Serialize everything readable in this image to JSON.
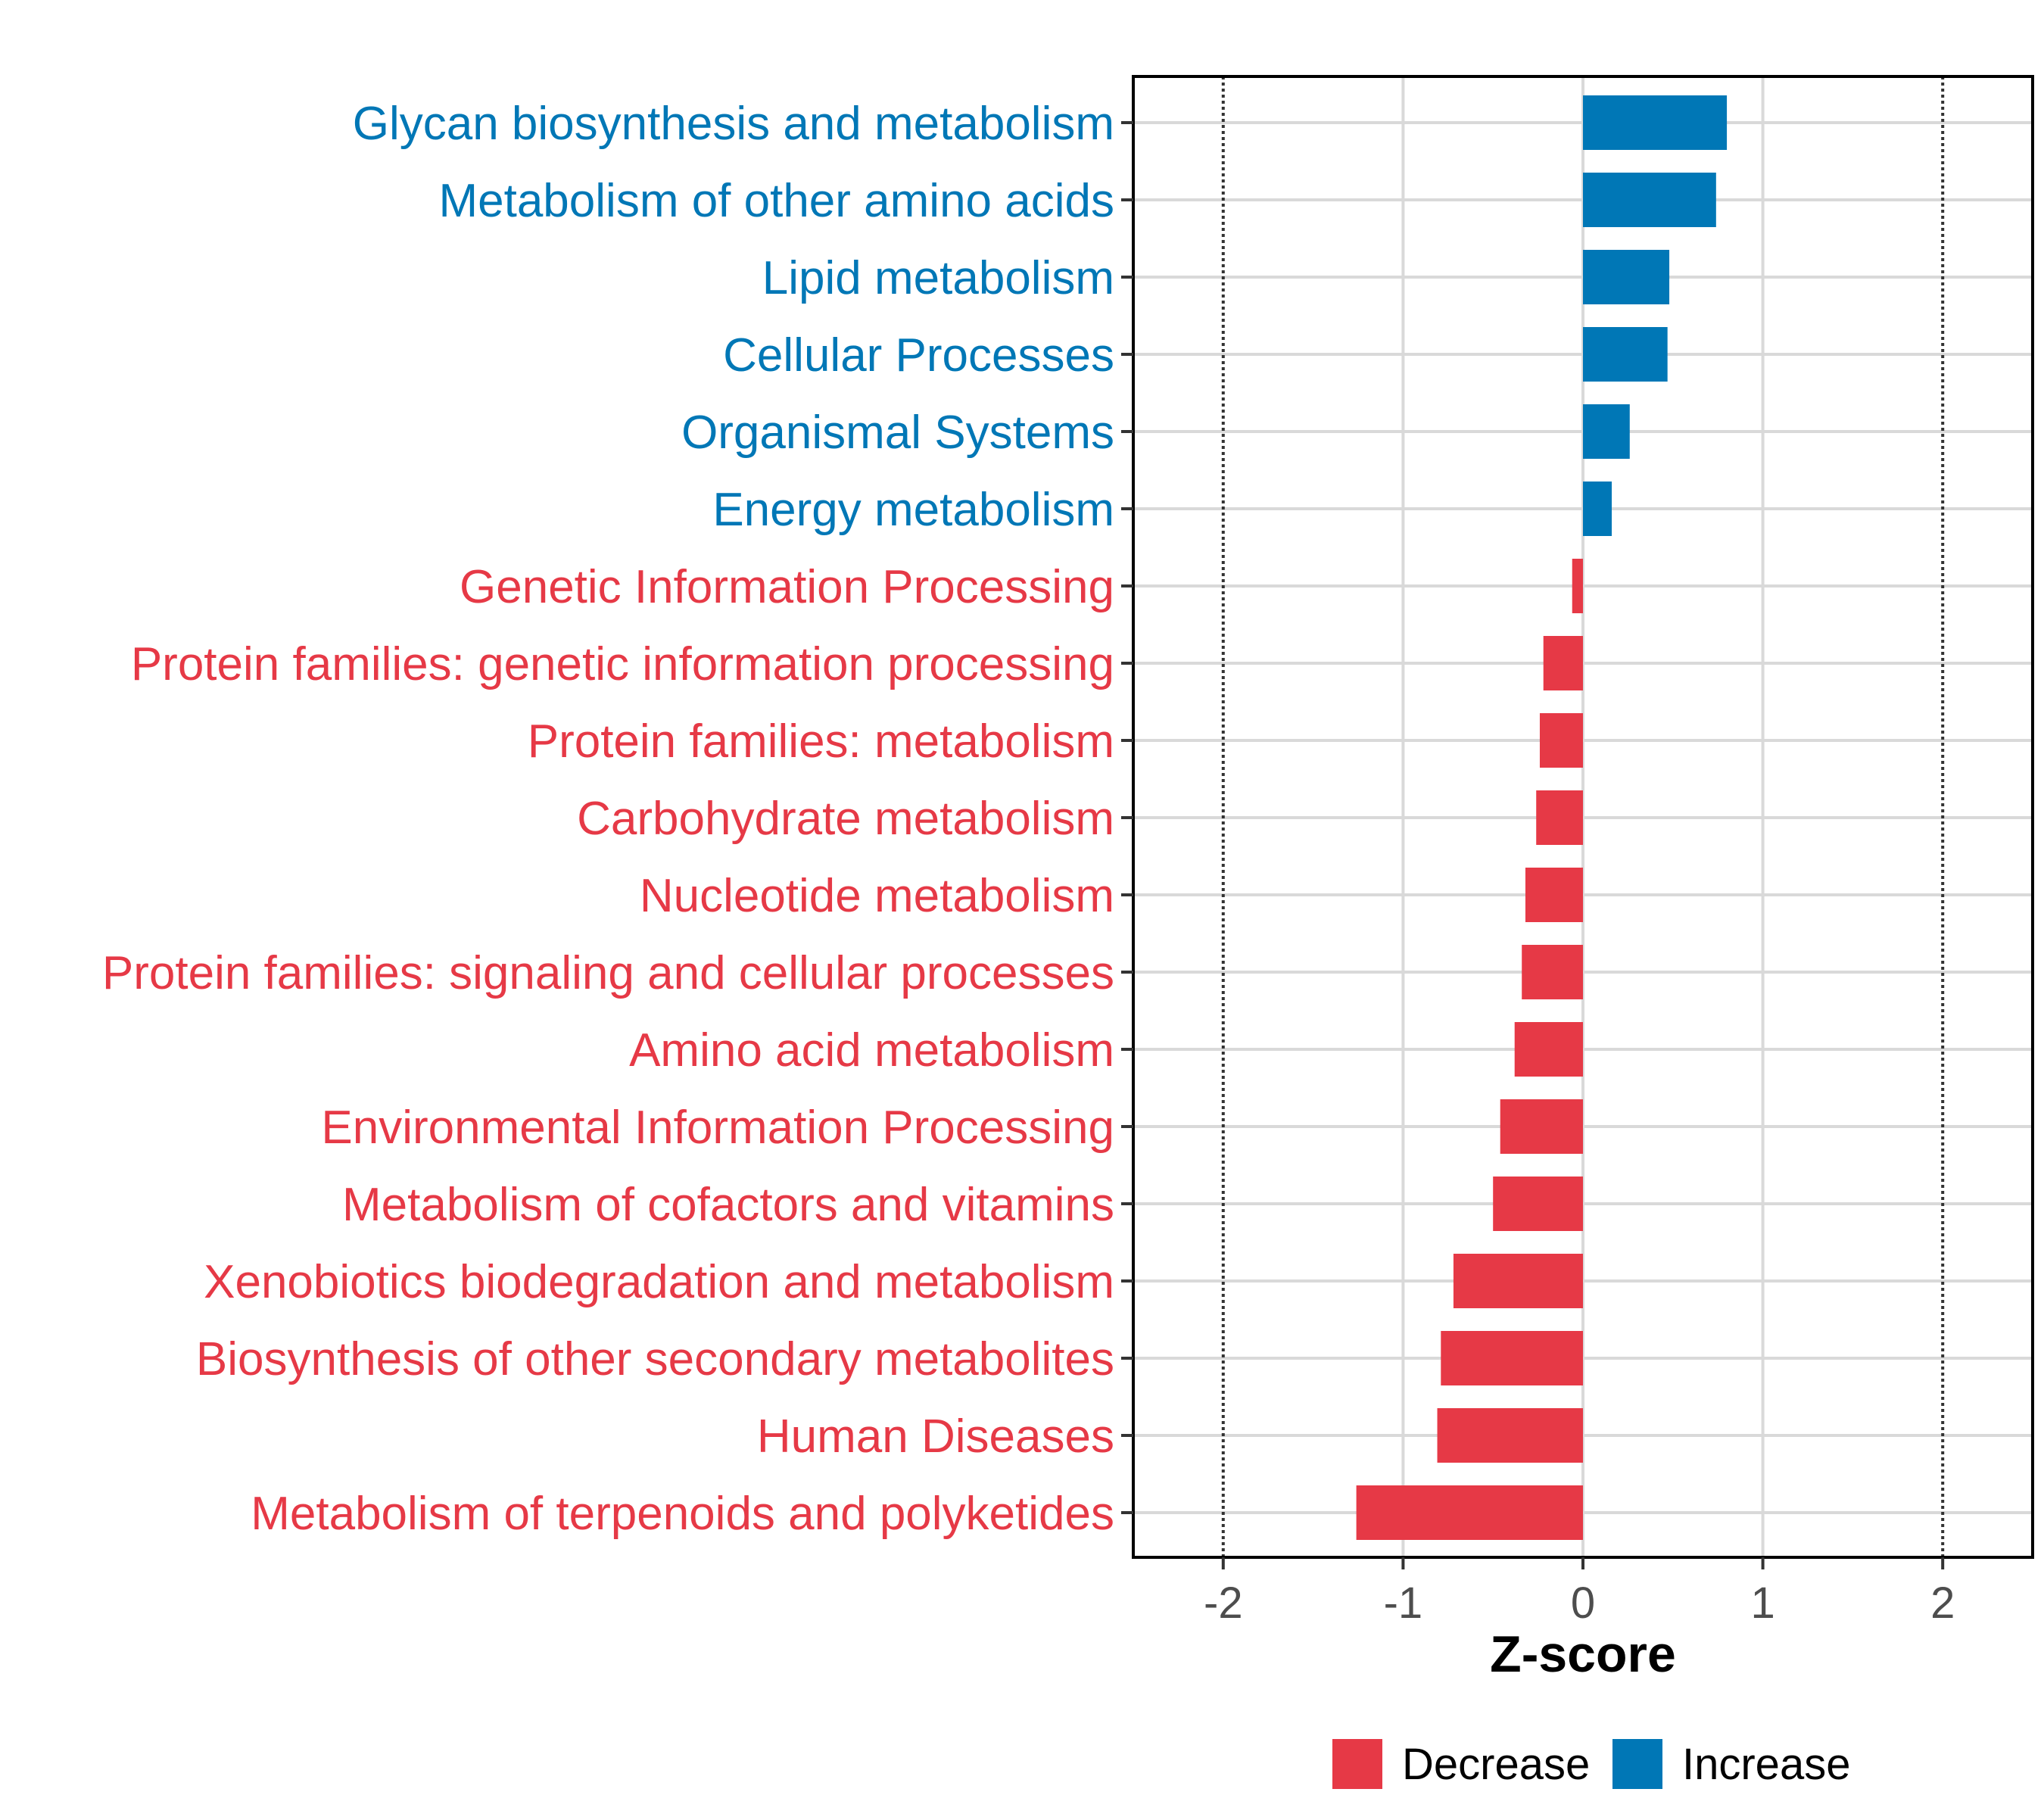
{
  "chart_data": {
    "type": "bar",
    "orientation": "horizontal",
    "title": "",
    "xlabel": "Z-score",
    "ylabel": "",
    "xlim": [
      -2.5,
      2.5
    ],
    "xticks": [
      -2,
      -1,
      0,
      1,
      2
    ],
    "xtick_labels": [
      "-2",
      "-1",
      "0",
      "1",
      "2"
    ],
    "reference_lines": [
      -2,
      2
    ],
    "grid": true,
    "legend_position": "bottom",
    "colors": {
      "Decrease": "#e63946",
      "Increase": "#0077b6"
    },
    "legend": [
      {
        "name": "Decrease",
        "color": "#e63946"
      },
      {
        "name": "Increase",
        "color": "#0077b6"
      }
    ],
    "categories": [
      "Glycan biosynthesis and metabolism",
      "Metabolism of other amino acids",
      "Lipid metabolism",
      "Cellular Processes",
      "Organismal Systems",
      "Energy metabolism",
      "Genetic Information Processing",
      "Protein families: genetic information processing",
      "Protein families: metabolism",
      "Carbohydrate metabolism",
      "Nucleotide metabolism",
      "Protein families: signaling and cellular processes",
      "Amino acid metabolism",
      "Environmental Information Processing",
      "Metabolism of cofactors and vitamins",
      "Xenobiotics biodegradation and metabolism",
      "Biosynthesis of other secondary metabolites",
      "Human Diseases",
      "Metabolism of terpenoids and polyketides"
    ],
    "values": [
      0.8,
      0.74,
      0.48,
      0.47,
      0.26,
      0.16,
      -0.06,
      -0.22,
      -0.24,
      -0.26,
      -0.32,
      -0.34,
      -0.38,
      -0.46,
      -0.5,
      -0.72,
      -0.79,
      -0.81,
      -1.26
    ],
    "groups": [
      "Increase",
      "Increase",
      "Increase",
      "Increase",
      "Increase",
      "Increase",
      "Decrease",
      "Decrease",
      "Decrease",
      "Decrease",
      "Decrease",
      "Decrease",
      "Decrease",
      "Decrease",
      "Decrease",
      "Decrease",
      "Decrease",
      "Decrease",
      "Decrease"
    ]
  }
}
